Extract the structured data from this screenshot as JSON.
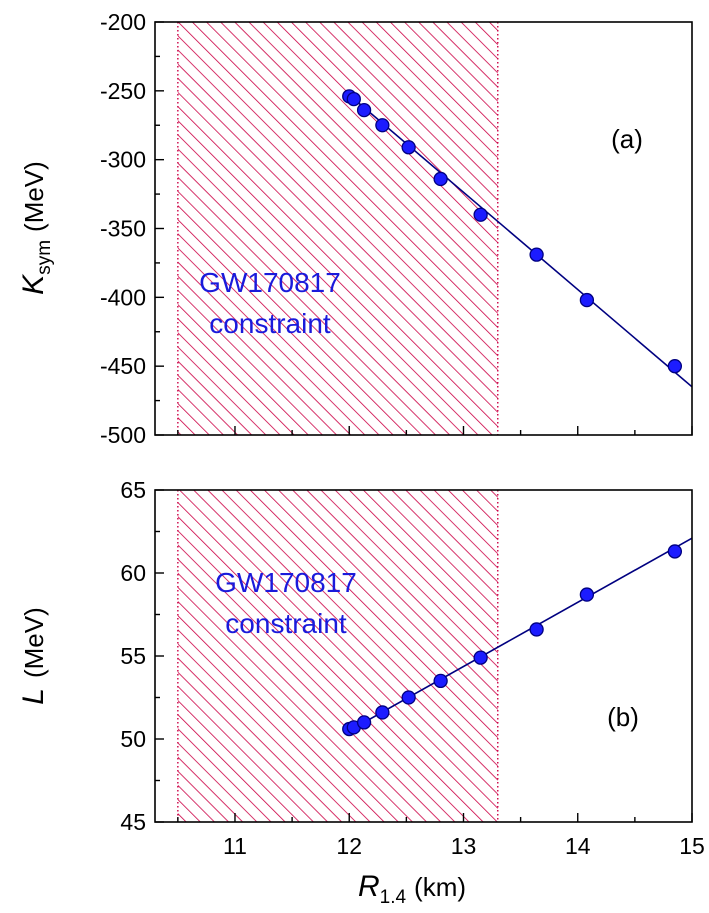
{
  "chart_data": [
    {
      "type": "scatter",
      "panel_label": "(a)",
      "ylabel_main": "K",
      "ylabel_sub": "sym",
      "ylabel_unit": "(MeV)",
      "xlim": [
        10.3,
        15.0
      ],
      "ylim": [
        -500,
        -200
      ],
      "yticks": [
        -200,
        -250,
        -300,
        -350,
        -400,
        -450,
        -500
      ],
      "xticks": [
        11,
        12,
        13,
        14,
        15
      ],
      "show_xtick_labels": false,
      "shaded_region": {
        "x0": 10.5,
        "x1": 13.3,
        "label_line1": "GW170817",
        "label_line2": "constraint",
        "color": "#cc0044"
      },
      "fit_line": {
        "x0": 12.0,
        "y0": -253,
        "x1": 15.0,
        "y1": -465
      },
      "points": [
        {
          "x": 12.0,
          "y": -254
        },
        {
          "x": 12.04,
          "y": -256
        },
        {
          "x": 12.13,
          "y": -264
        },
        {
          "x": 12.29,
          "y": -275
        },
        {
          "x": 12.52,
          "y": -291
        },
        {
          "x": 12.8,
          "y": -314
        },
        {
          "x": 13.15,
          "y": -340
        },
        {
          "x": 13.64,
          "y": -369
        },
        {
          "x": 14.08,
          "y": -402
        },
        {
          "x": 14.85,
          "y": -450
        }
      ]
    },
    {
      "type": "scatter",
      "panel_label": "(b)",
      "ylabel_main": "L",
      "ylabel_unit": "(MeV)",
      "xlim": [
        10.3,
        15.0
      ],
      "ylim": [
        45,
        65
      ],
      "yticks": [
        45,
        50,
        55,
        60,
        65
      ],
      "xticks": [
        11,
        12,
        13,
        14,
        15
      ],
      "show_xtick_labels": true,
      "xlabel_main": "R",
      "xlabel_sub": "1.4",
      "xlabel_unit": "(km)",
      "shaded_region": {
        "x0": 10.5,
        "x1": 13.3,
        "label_line1": "GW170817",
        "label_line2": "constraint",
        "color": "#cc0044"
      },
      "fit_line": {
        "x0": 12.0,
        "y0": 50.5,
        "x1": 15.0,
        "y1": 62.1
      },
      "points": [
        {
          "x": 12.0,
          "y": 50.6
        },
        {
          "x": 12.04,
          "y": 50.7
        },
        {
          "x": 12.13,
          "y": 51.0
        },
        {
          "x": 12.29,
          "y": 51.6
        },
        {
          "x": 12.52,
          "y": 52.5
        },
        {
          "x": 12.8,
          "y": 53.5
        },
        {
          "x": 13.15,
          "y": 54.9
        },
        {
          "x": 13.64,
          "y": 56.6
        },
        {
          "x": 14.08,
          "y": 58.7
        },
        {
          "x": 14.85,
          "y": 61.3
        }
      ]
    }
  ],
  "colors": {
    "marker_fill": "#1c1cff",
    "marker_stroke": "#000080",
    "line": "#000080",
    "hatch": "#cc0044"
  }
}
